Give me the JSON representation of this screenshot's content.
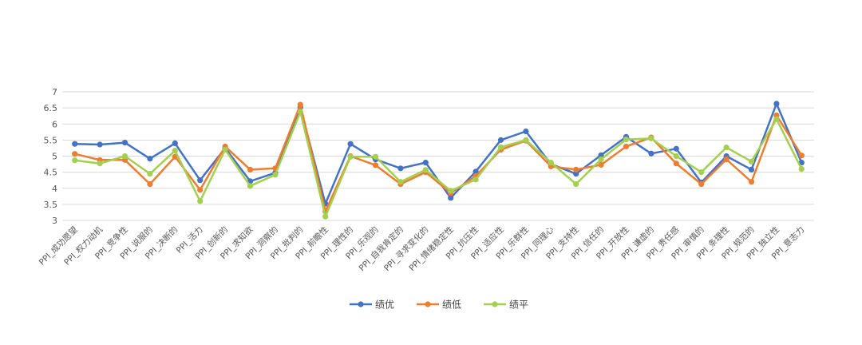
{
  "chart_data": {
    "type": "line",
    "title": "",
    "xlabel": "",
    "ylabel": "",
    "ylim": [
      3,
      7
    ],
    "yticks": [
      "3",
      "3.5",
      "4",
      "4.5",
      "5",
      "5.5",
      "6",
      "6.5",
      "7"
    ],
    "grid": true,
    "legend_position": "bottom",
    "categories": [
      "PPI_成功愿望",
      "PPI_权力动机",
      "PPI_竞争性",
      "PPI_说服的",
      "PPI_决断的",
      "PPI_活力",
      "PPI_创新的",
      "PPI_求知欲",
      "PPI_洞察的",
      "PPI_批判的",
      "PPI_前瞻性",
      "PPI_理性的",
      "PPI_乐观的",
      "PPI_自我肯定的",
      "PPI_寻求变化的",
      "PPI_情绪稳定性",
      "PPI_抗压性",
      "PPI_适应性",
      "PPI_乐群性",
      "PPI_同理心",
      "PPI_支持性",
      "PPI_信任的",
      "PPI_开放性",
      "PPI_谦虚的",
      "PPI_责任感",
      "PPI_审慎的",
      "PPI_条理性",
      "PPI_规范的",
      "PPI_独立性",
      "PPI_意志力"
    ],
    "series": [
      {
        "name": "绩优",
        "color": "#4472C4",
        "values": [
          5.38,
          5.36,
          5.42,
          4.92,
          5.4,
          4.25,
          5.25,
          4.22,
          4.48,
          6.52,
          3.52,
          5.38,
          4.9,
          4.62,
          4.8,
          3.7,
          4.52,
          5.5,
          5.77,
          4.75,
          4.45,
          5.03,
          5.6,
          5.08,
          5.23,
          4.18,
          5.0,
          4.58,
          6.63,
          4.8
        ]
      },
      {
        "name": "绩低",
        "color": "#ED7D31",
        "values": [
          5.07,
          4.88,
          4.88,
          4.13,
          4.98,
          3.95,
          5.3,
          4.58,
          4.62,
          6.6,
          3.28,
          5.0,
          4.72,
          4.13,
          4.5,
          3.85,
          4.38,
          5.2,
          5.48,
          4.68,
          4.58,
          4.73,
          5.3,
          5.58,
          4.77,
          4.13,
          4.9,
          4.2,
          6.27,
          5.02
        ]
      },
      {
        "name": "绩平",
        "color": "#A5CF4E",
        "values": [
          4.87,
          4.77,
          5.0,
          4.45,
          5.17,
          3.6,
          5.2,
          4.07,
          4.42,
          6.38,
          3.12,
          4.98,
          4.98,
          4.2,
          4.57,
          3.92,
          4.27,
          5.28,
          5.5,
          4.8,
          4.13,
          4.9,
          5.52,
          5.55,
          5.0,
          4.5,
          5.27,
          4.83,
          6.15,
          4.6
        ]
      }
    ]
  }
}
